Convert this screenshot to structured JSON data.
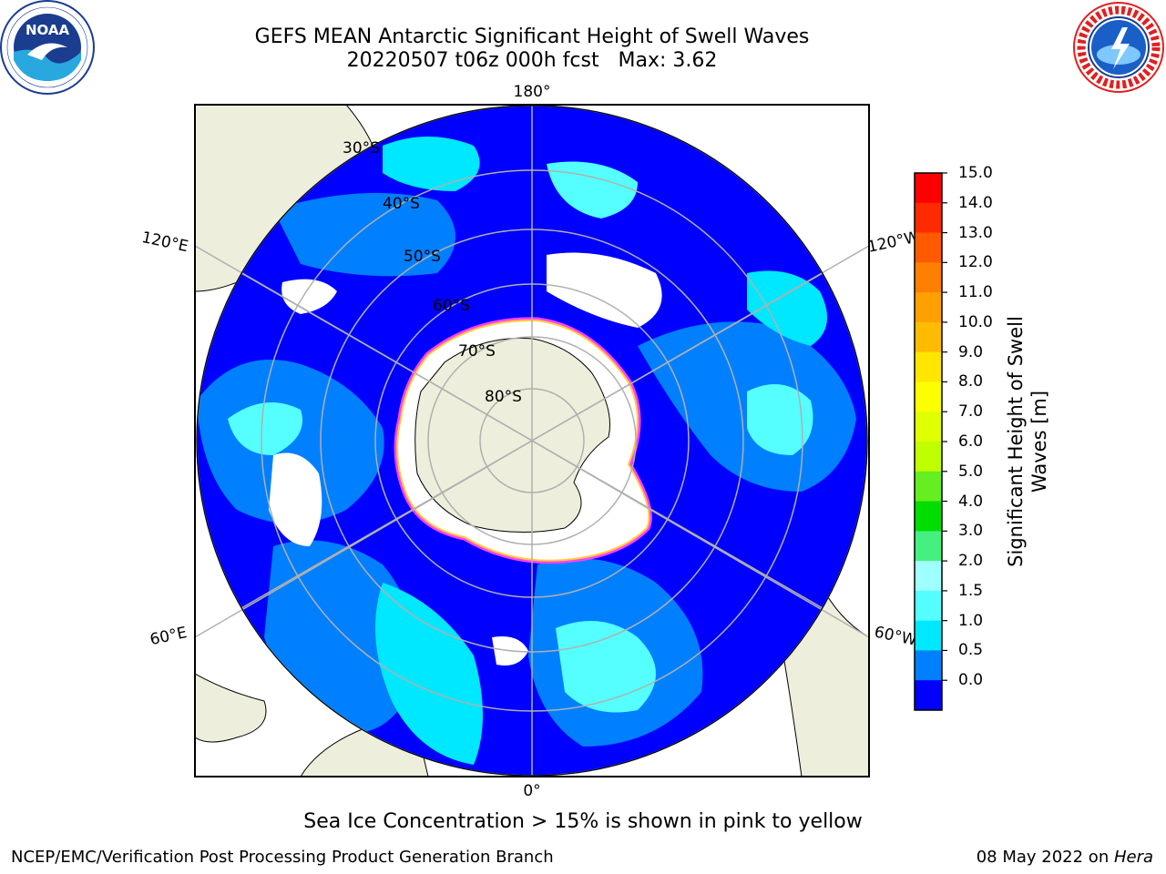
{
  "header": {
    "title_line1": "GEFS MEAN Antarctic Significant Height of Swell Waves",
    "title_line2": "20220507 t06z 000h fcst   Max: 3.62"
  },
  "logos": {
    "noaa": {
      "text": "NOAA",
      "ring_text": "NATIONAL OCEANIC AND ATMOSPHERIC ADMINISTRATION · U.S. DEPARTMENT OF COMMERCE"
    },
    "nws": {
      "ring_text": "NATIONAL WEATHER SERVICE"
    }
  },
  "map": {
    "projection": "south-polar-stereographic",
    "meridian_labels": {
      "top": "180°",
      "bottom": "0°",
      "upper_left": "120°E",
      "upper_right": "120°W",
      "lower_left": "60°E",
      "lower_right": "60°W"
    },
    "parallel_labels": [
      "30°S",
      "40°S",
      "50°S",
      "60°S",
      "70°S",
      "80°S"
    ],
    "colors": {
      "land": "#eeeedc",
      "open_ocean": "#ffffff",
      "grid": "#b0b0b0",
      "ice_edge": "#ff40ff"
    }
  },
  "colorbar": {
    "title_line1": "Significant Height of Swell",
    "title_line2": "Waves [m]",
    "ticks": [
      "15.0",
      "14.0",
      "13.0",
      "12.0",
      "11.0",
      "10.0",
      "9.0",
      "8.0",
      "7.0",
      "6.0",
      "5.0",
      "4.0",
      "3.0",
      "2.0",
      "1.5",
      "1.0",
      "0.5",
      "0.0"
    ],
    "colors_top_to_bottom": [
      "#ff0000",
      "#ff2a00",
      "#ff5a00",
      "#ff8000",
      "#ffa000",
      "#ffbb00",
      "#ffe600",
      "#fbff00",
      "#e0ff00",
      "#c0ff00",
      "#66ee20",
      "#00dd00",
      "#44f080",
      "#a0ffff",
      "#55ffff",
      "#00e8ff",
      "#0080ff",
      "#0000ff"
    ]
  },
  "ice_note": "Sea Ice Concentration > 15% is shown in pink to yellow",
  "footer": {
    "left": "NCEP/EMC/Verification Post Processing Product Generation Branch",
    "right_prefix": "08 May 2022 on ",
    "right_machine": "Hera"
  }
}
